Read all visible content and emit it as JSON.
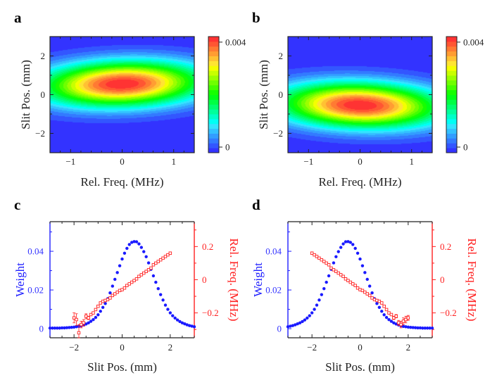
{
  "chart_data": [
    {
      "panel": "a",
      "type": "heatmap",
      "xlabel": "Rel. Freq. (MHz)",
      "ylabel": "Slit Pos. (mm)",
      "xlim": [
        -1.4,
        1.4
      ],
      "ylim": [
        -3,
        3
      ],
      "xticks": [
        -1,
        0,
        1
      ],
      "xtick_labels": [
        "−1",
        "0",
        "1"
      ],
      "yticks": [
        -2,
        0,
        2
      ],
      "ytick_labels": [
        "−2",
        "0",
        "2"
      ],
      "model": {
        "peak": 0.0042,
        "center_freq": 0,
        "center_pos": 0.55,
        "sigma_freq": 1.1,
        "sigma_pos": 0.8,
        "tilt": 0.08
      },
      "colorbar": {
        "range": [
          0,
          0.0042
        ],
        "levels": 24,
        "ticks": [
          0,
          0.004
        ],
        "tick_labels": [
          "0",
          "0.004"
        ]
      }
    },
    {
      "panel": "b",
      "type": "heatmap",
      "xlabel": "Rel. Freq. (MHz)",
      "ylabel": "Slit Pos. (mm)",
      "xlim": [
        -1.4,
        1.4
      ],
      "ylim": [
        -3,
        3
      ],
      "xticks": [
        -1,
        0,
        1
      ],
      "xtick_labels": [
        "−1",
        "0",
        "1"
      ],
      "yticks": [
        -2,
        0,
        2
      ],
      "ytick_labels": [
        "−2",
        "0",
        "2"
      ],
      "model": {
        "peak": 0.0042,
        "center_freq": 0,
        "center_pos": -0.55,
        "sigma_freq": 1.1,
        "sigma_pos": 0.8,
        "tilt": -0.08
      },
      "colorbar": {
        "range": [
          0,
          0.0042
        ],
        "levels": 24,
        "ticks": [
          0,
          0.004
        ],
        "tick_labels": [
          "0",
          "0.004"
        ]
      }
    },
    {
      "panel": "c",
      "type": "scatter",
      "xlabel": "Slit Pos. (mm)",
      "ylabel": "Weight",
      "y2label": "Rel. Freq. (MHz)",
      "xlim": [
        -3,
        3
      ],
      "ylim": [
        -0.0047,
        0.0553
      ],
      "y2lim": [
        -0.35,
        0.35
      ],
      "xticks": [
        -2,
        0,
        2
      ],
      "xtick_labels": [
        "−2",
        "0",
        "2"
      ],
      "yticks": [
        0,
        0.02,
        0.04
      ],
      "ytick_labels": [
        "0",
        "0.02",
        "0.04"
      ],
      "y2ticks": [
        -0.2,
        0,
        0.2
      ],
      "y2tick_labels": [
        "−0.2",
        "0",
        "0.2"
      ],
      "series": [
        {
          "name": "Weight",
          "axis": "left",
          "color": "#1a1aff",
          "x_start": -3,
          "x_step": 0.1,
          "values": [
            0.0003,
            0.0003,
            0.0003,
            0.0003,
            0.0003,
            0.0004,
            0.0004,
            0.0005,
            0.0006,
            0.0007,
            0.0008,
            0.001,
            0.0012,
            0.0015,
            0.0019,
            0.0024,
            0.003,
            0.0038,
            0.0047,
            0.0058,
            0.0072,
            0.009,
            0.011,
            0.013,
            0.0155,
            0.0185,
            0.022,
            0.0255,
            0.029,
            0.0325,
            0.036,
            0.039,
            0.0415,
            0.0435,
            0.0446,
            0.045,
            0.0449,
            0.0438,
            0.042,
            0.0398,
            0.0372,
            0.034,
            0.0307,
            0.0273,
            0.024,
            0.0207,
            0.0176,
            0.0148,
            0.0122,
            0.01,
            0.0082,
            0.0067,
            0.0055,
            0.0045,
            0.0037,
            0.003,
            0.0025,
            0.002,
            0.0016,
            0.0013,
            0.001
          ]
        },
        {
          "name": "Rel. Freq.",
          "axis": "right",
          "color": "#ff2020",
          "x_start": -2,
          "x_step": 0.1,
          "values": [
            -0.23,
            -0.24,
            -0.32,
            -0.27,
            -0.26,
            -0.22,
            -0.23,
            -0.21,
            -0.2,
            -0.18,
            -0.16,
            -0.14,
            -0.13,
            -0.125,
            -0.12,
            -0.11,
            -0.095,
            -0.085,
            -0.075,
            -0.065,
            -0.06,
            -0.05,
            -0.035,
            -0.025,
            -0.015,
            -0.005,
            0.005,
            0.02,
            0.03,
            0.04,
            0.05,
            0.06,
            0.07,
            0.09,
            0.1,
            0.11,
            0.12,
            0.13,
            0.14,
            0.15,
            0.16
          ],
          "errors": [
            0.03,
            0.035,
            0.05,
            0.02,
            0.02,
            0.015,
            0.01,
            0.005,
            0.005,
            0.005,
            0.005,
            0.005,
            0.005,
            0.005,
            0.005,
            0.005,
            0.005,
            0.005,
            0.005,
            0.005,
            0.005,
            0.005,
            0.005,
            0.005,
            0.005,
            0.005,
            0.005,
            0.005,
            0.005,
            0.005,
            0.005,
            0.005,
            0.005,
            0.005,
            0.005,
            0.005,
            0.005,
            0.005,
            0.005,
            0.005,
            0.008
          ]
        }
      ]
    },
    {
      "panel": "d",
      "type": "scatter",
      "xlabel": "Slit Pos. (mm)",
      "ylabel": "Weight",
      "y2label": "Rel. Freq. (MHz)",
      "xlim": [
        -3,
        3
      ],
      "ylim": [
        -0.0047,
        0.0553
      ],
      "y2lim": [
        -0.35,
        0.35
      ],
      "xticks": [
        -2,
        0,
        2
      ],
      "xtick_labels": [
        "−2",
        "0",
        "2"
      ],
      "yticks": [
        0,
        0.02,
        0.04
      ],
      "ytick_labels": [
        "0",
        "0.02",
        "0.04"
      ],
      "y2ticks": [
        -0.2,
        0,
        0.2
      ],
      "y2tick_labels": [
        "−0.2",
        "0",
        "0.2"
      ],
      "series": [
        {
          "name": "Weight",
          "axis": "left",
          "color": "#1a1aff",
          "x_start": -3,
          "x_step": 0.1,
          "values": [
            0.001,
            0.0013,
            0.0016,
            0.002,
            0.0025,
            0.003,
            0.0037,
            0.0045,
            0.0055,
            0.0067,
            0.0082,
            0.01,
            0.0122,
            0.0148,
            0.0176,
            0.0207,
            0.024,
            0.0273,
            0.0307,
            0.034,
            0.0372,
            0.0398,
            0.042,
            0.0438,
            0.0449,
            0.045,
            0.0446,
            0.0435,
            0.0415,
            0.039,
            0.036,
            0.0325,
            0.029,
            0.0255,
            0.022,
            0.0185,
            0.0155,
            0.013,
            0.011,
            0.009,
            0.0072,
            0.0058,
            0.0047,
            0.0038,
            0.003,
            0.0024,
            0.0019,
            0.0015,
            0.0012,
            0.001,
            0.0008,
            0.0007,
            0.0006,
            0.0005,
            0.0004,
            0.0004,
            0.0003,
            0.0003,
            0.0003,
            0.0003,
            0.0003
          ]
        },
        {
          "name": "Rel. Freq.",
          "axis": "right",
          "color": "#ff2020",
          "x_start": -2,
          "x_step": 0.1,
          "values": [
            0.16,
            0.15,
            0.14,
            0.13,
            0.12,
            0.11,
            0.1,
            0.09,
            0.07,
            0.06,
            0.05,
            0.04,
            0.03,
            0.02,
            0.005,
            -0.005,
            -0.015,
            -0.025,
            -0.035,
            -0.05,
            -0.06,
            -0.065,
            -0.075,
            -0.085,
            -0.095,
            -0.11,
            -0.12,
            -0.125,
            -0.13,
            -0.14,
            -0.16,
            -0.18,
            -0.2,
            -0.21,
            -0.23,
            -0.22,
            -0.26,
            -0.27,
            -0.25,
            -0.24,
            -0.23
          ],
          "errors": [
            0.008,
            0.005,
            0.005,
            0.005,
            0.005,
            0.005,
            0.005,
            0.005,
            0.005,
            0.005,
            0.005,
            0.005,
            0.005,
            0.005,
            0.005,
            0.005,
            0.005,
            0.005,
            0.005,
            0.005,
            0.005,
            0.005,
            0.005,
            0.005,
            0.005,
            0.005,
            0.005,
            0.005,
            0.005,
            0.005,
            0.005,
            0.005,
            0.005,
            0.005,
            0.01,
            0.01,
            0.015,
            0.02,
            0.02,
            0.02,
            0.015
          ]
        }
      ]
    }
  ],
  "panel_labels": [
    "a",
    "b",
    "c",
    "d"
  ]
}
